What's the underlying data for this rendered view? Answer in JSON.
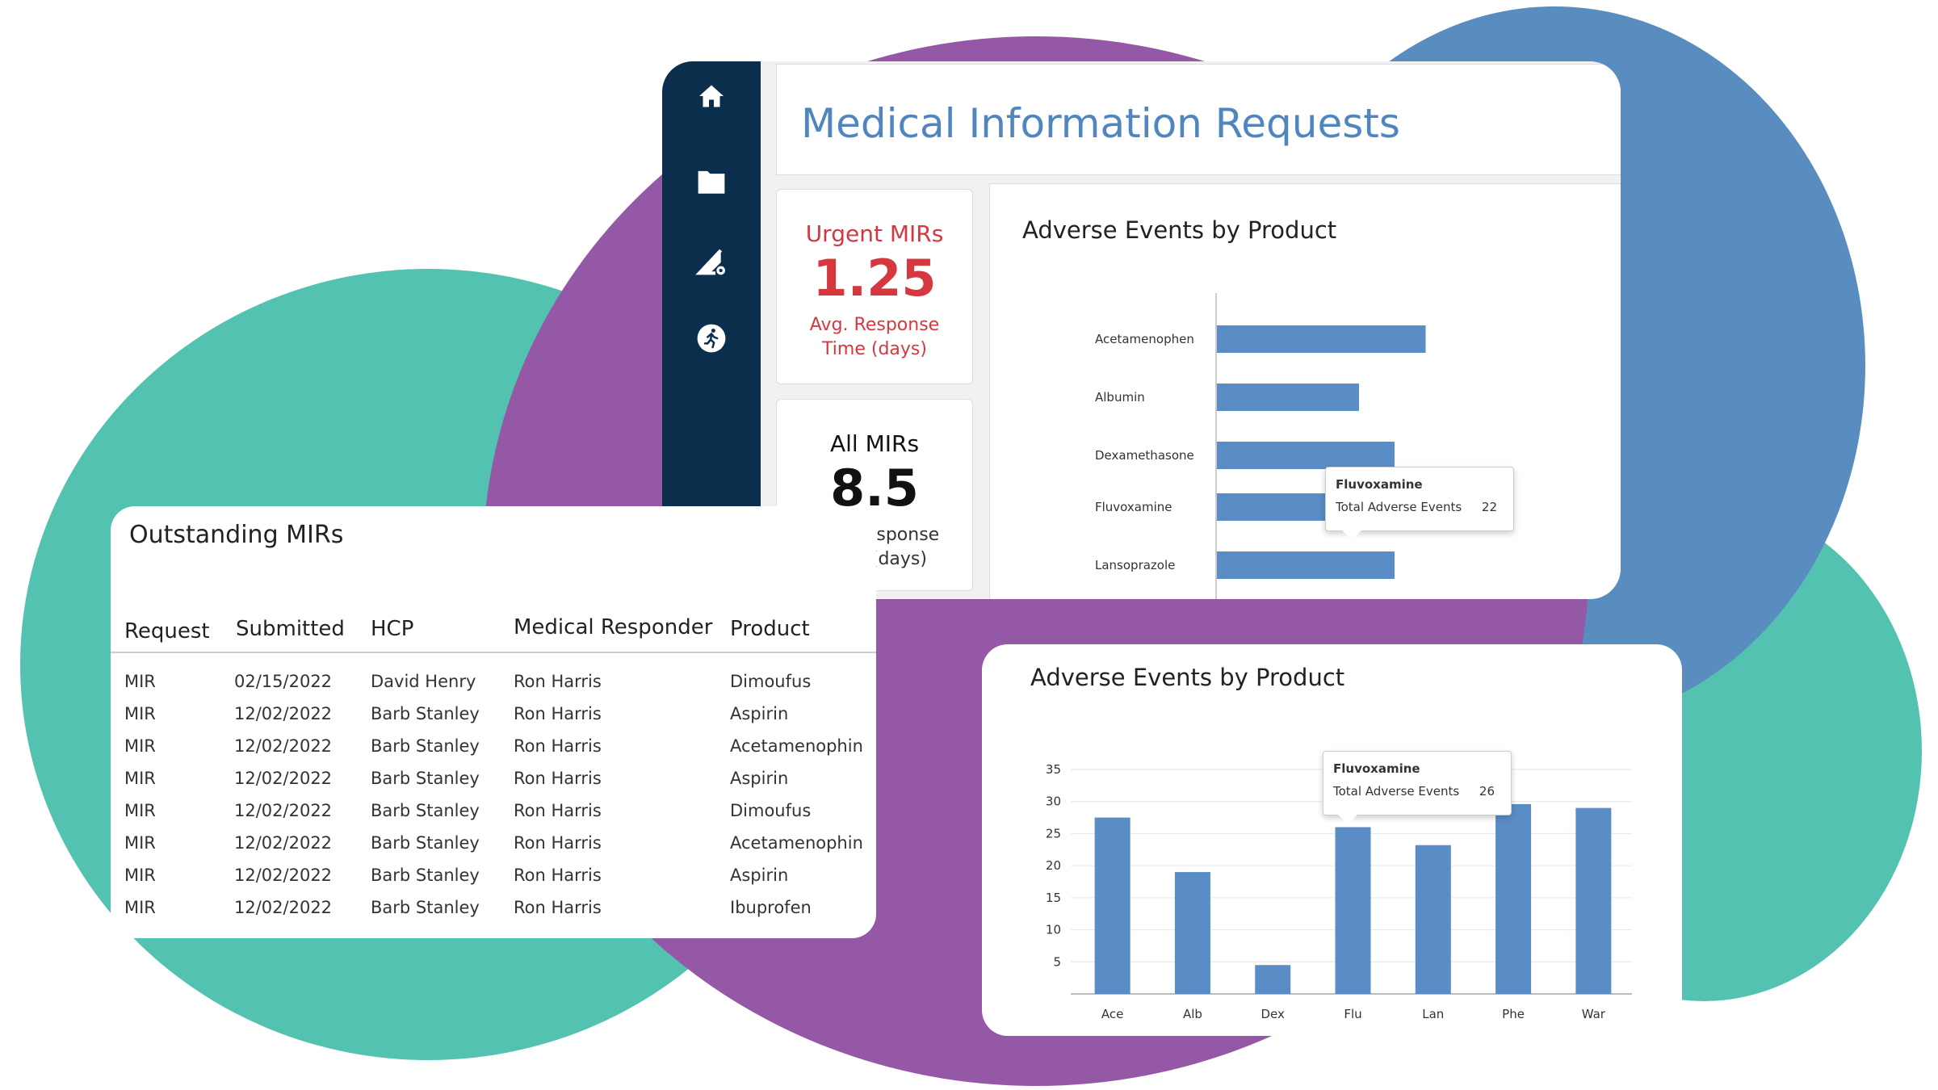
{
  "dashboard": {
    "title": "Medical Information Requests",
    "nav_icons": [
      "home-icon",
      "folder-icon",
      "settings-triangle-icon",
      "activity-icon"
    ],
    "kpis": [
      {
        "heading": "Urgent MIRs",
        "value": "1.25",
        "sub_line1": "Avg. Response",
        "sub_line2": "Time (days)",
        "color": "#d6383f"
      },
      {
        "heading": "All MIRs",
        "value": "8.5",
        "sub_line1": "Avg. Response",
        "sub_line2": "Time (days)",
        "color": "#111111"
      }
    ]
  },
  "outstanding": {
    "title": "Outstanding MIRs",
    "columns": [
      "Request",
      "Submitted",
      "HCP",
      "Medical Responder",
      "Product"
    ],
    "rows": [
      [
        "MIR",
        "02/15/2022",
        "David Henry",
        "Ron Harris",
        "Dimoufus"
      ],
      [
        "MIR",
        "12/02/2022",
        "Barb Stanley",
        "Ron Harris",
        "Aspirin"
      ],
      [
        "MIR",
        "12/02/2022",
        "Barb Stanley",
        "Ron Harris",
        "Acetamenophin"
      ],
      [
        "MIR",
        "12/02/2022",
        "Barb Stanley",
        "Ron Harris",
        "Aspirin"
      ],
      [
        "MIR",
        "12/02/2022",
        "Barb Stanley",
        "Ron Harris",
        "Dimoufus"
      ],
      [
        "MIR",
        "12/02/2022",
        "Barb Stanley",
        "Ron Harris",
        "Acetamenophin"
      ],
      [
        "MIR",
        "12/02/2022",
        "Barb Stanley",
        "Ron Harris",
        "Aspirin"
      ],
      [
        "MIR",
        "12/02/2022",
        "Barb Stanley",
        "Ron Harris",
        "Ibuprofen"
      ]
    ]
  },
  "colors": {
    "bar": "#5a8dc6",
    "accent_title": "#4f86c0",
    "nav_bg": "#0b2e4c",
    "teal": "#54c2b1",
    "purple": "#9558a6",
    "blue": "#5a8dbf"
  },
  "chart_data": [
    {
      "type": "bar",
      "orientation": "horizontal",
      "title": "Adverse Events by Product",
      "categories": [
        "Acetamenophen",
        "Albumin",
        "Dexamethasone",
        "Fluvoxamine",
        "Lansoprazole"
      ],
      "values": [
        23.5,
        16,
        20,
        22,
        20
      ],
      "xlim": [
        0,
        30
      ],
      "grid": false,
      "tooltip": {
        "title": "Fluvoxamine",
        "label": "Total Adverse Events",
        "value": "22"
      }
    },
    {
      "type": "bar",
      "title": "Adverse Events by Product",
      "categories": [
        "Ace",
        "Alb",
        "Dex",
        "Flu",
        "Lan",
        "Phe",
        "War"
      ],
      "values": [
        27.5,
        19,
        4.5,
        26,
        23.2,
        29.6,
        29
      ],
      "yticks": [
        "5",
        "10",
        "15",
        "20",
        "25",
        "30",
        "35"
      ],
      "ylim": [
        0,
        35
      ],
      "grid": true,
      "tooltip": {
        "title": "Fluvoxamine",
        "label": "Total Adverse Events",
        "value": "26"
      }
    }
  ]
}
